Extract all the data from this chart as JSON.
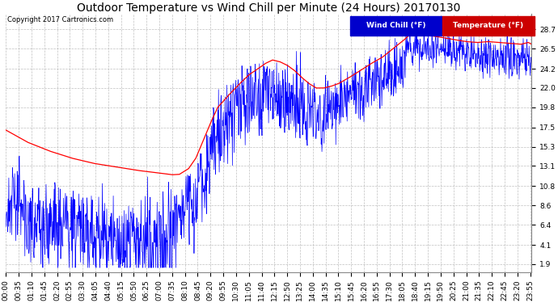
{
  "title": "Outdoor Temperature vs Wind Chill per Minute (24 Hours) 20170130",
  "copyright": "Copyright 2017 Cartronics.com",
  "ytick_vals": [
    28.7,
    26.5,
    24.2,
    22.0,
    19.8,
    17.5,
    15.3,
    13.1,
    10.8,
    8.6,
    6.4,
    4.1,
    1.9
  ],
  "ylim": [
    1.0,
    30.5
  ],
  "bg_color": "#ffffff",
  "plot_bg": "#ffffff",
  "grid_color": "#b0b0b0",
  "temp_color": "#ff0000",
  "wind_color": "#0000ff",
  "legend_wind_bg": "#0000cc",
  "legend_temp_bg": "#cc0000",
  "title_fontsize": 10,
  "tick_fontsize": 6.5,
  "n_minutes": 1440,
  "xtick_step": 35,
  "temp_keypoints": [
    [
      0,
      17.2
    ],
    [
      30,
      16.5
    ],
    [
      60,
      15.8
    ],
    [
      120,
      14.8
    ],
    [
      180,
      14.0
    ],
    [
      240,
      13.4
    ],
    [
      300,
      13.0
    ],
    [
      360,
      12.6
    ],
    [
      420,
      12.3
    ],
    [
      455,
      12.1
    ],
    [
      475,
      12.15
    ],
    [
      500,
      12.8
    ],
    [
      520,
      14.0
    ],
    [
      540,
      16.0
    ],
    [
      560,
      18.0
    ],
    [
      580,
      19.8
    ],
    [
      610,
      21.2
    ],
    [
      640,
      22.5
    ],
    [
      665,
      23.5
    ],
    [
      690,
      24.2
    ],
    [
      710,
      24.8
    ],
    [
      730,
      25.2
    ],
    [
      750,
      25.0
    ],
    [
      770,
      24.6
    ],
    [
      790,
      24.0
    ],
    [
      810,
      23.2
    ],
    [
      830,
      22.5
    ],
    [
      850,
      22.0
    ],
    [
      870,
      22.0
    ],
    [
      890,
      22.2
    ],
    [
      910,
      22.5
    ],
    [
      940,
      23.2
    ],
    [
      970,
      24.0
    ],
    [
      1000,
      24.8
    ],
    [
      1030,
      25.5
    ],
    [
      1060,
      26.5
    ],
    [
      1090,
      27.5
    ],
    [
      1110,
      28.3
    ],
    [
      1125,
      28.7
    ],
    [
      1140,
      28.5
    ],
    [
      1160,
      28.0
    ],
    [
      1190,
      27.8
    ],
    [
      1230,
      27.5
    ],
    [
      1260,
      27.3
    ],
    [
      1290,
      27.2
    ],
    [
      1320,
      27.3
    ],
    [
      1350,
      27.2
    ],
    [
      1380,
      27.1
    ],
    [
      1410,
      27.0
    ],
    [
      1430,
      27.2
    ],
    [
      1439,
      27.0
    ]
  ]
}
